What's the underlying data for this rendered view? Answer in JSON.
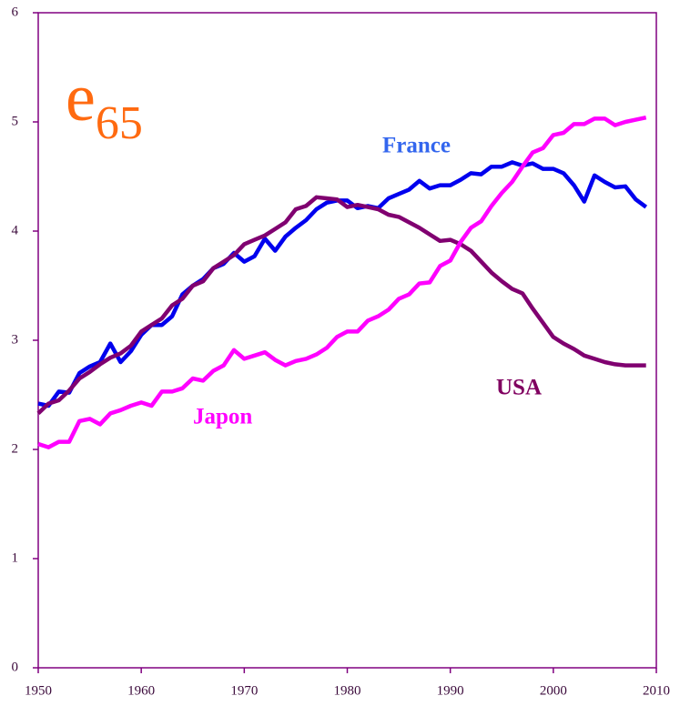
{
  "chart_data": {
    "type": "line",
    "title": "e",
    "title_subscript": "65",
    "title_color": "#ff6a10",
    "axis_color": "#800080",
    "x": [
      1950,
      1951,
      1952,
      1953,
      1954,
      1955,
      1956,
      1957,
      1958,
      1959,
      1960,
      1961,
      1962,
      1963,
      1964,
      1965,
      1966,
      1967,
      1968,
      1969,
      1970,
      1971,
      1972,
      1973,
      1974,
      1975,
      1976,
      1977,
      1978,
      1979,
      1980,
      1981,
      1982,
      1983,
      1984,
      1985,
      1986,
      1987,
      1988,
      1989,
      1990,
      1991,
      1992,
      1993,
      1994,
      1995,
      1996,
      1997,
      1998,
      1999,
      2000,
      2001,
      2002,
      2003,
      2004,
      2005,
      2006,
      2007,
      2008,
      2009
    ],
    "series": [
      {
        "name": "France",
        "color": "#0000ee",
        "label_color": "#3366ee",
        "values": [
          2.42,
          2.4,
          2.53,
          2.52,
          2.7,
          2.76,
          2.8,
          2.97,
          2.8,
          2.9,
          3.05,
          3.14,
          3.14,
          3.22,
          3.42,
          3.5,
          3.56,
          3.66,
          3.7,
          3.8,
          3.72,
          3.77,
          3.93,
          3.82,
          3.95,
          4.03,
          4.1,
          4.2,
          4.26,
          4.28,
          4.28,
          4.21,
          4.23,
          4.21,
          4.3,
          4.34,
          4.38,
          4.46,
          4.39,
          4.42,
          4.42,
          4.47,
          4.53,
          4.52,
          4.59,
          4.59,
          4.63,
          4.6,
          4.62,
          4.57,
          4.57,
          4.53,
          4.42,
          4.27,
          4.51,
          4.45,
          4.4,
          4.41,
          4.29,
          4.22
        ]
      },
      {
        "name": "USA",
        "color": "#800070",
        "label_color": "#800060",
        "values": [
          2.33,
          2.42,
          2.45,
          2.54,
          2.65,
          2.71,
          2.78,
          2.84,
          2.88,
          2.95,
          3.08,
          3.14,
          3.2,
          3.32,
          3.38,
          3.5,
          3.54,
          3.66,
          3.72,
          3.78,
          3.88,
          3.92,
          3.96,
          4.02,
          4.08,
          4.2,
          4.23,
          4.31,
          4.3,
          4.29,
          4.22,
          4.24,
          4.22,
          4.2,
          4.15,
          4.13,
          4.08,
          4.03,
          3.97,
          3.91,
          3.92,
          3.88,
          3.82,
          3.72,
          3.62,
          3.54,
          3.47,
          3.43,
          3.29,
          3.16,
          3.03,
          2.97,
          2.92,
          2.86,
          2.83,
          2.8,
          2.78,
          2.77,
          2.77,
          2.77
        ]
      },
      {
        "name": "Japon",
        "color": "#ff00ff",
        "label_color": "#ff00ff",
        "values": [
          2.05,
          2.02,
          2.07,
          2.07,
          2.26,
          2.28,
          2.23,
          2.33,
          2.36,
          2.4,
          2.43,
          2.4,
          2.53,
          2.53,
          2.56,
          2.65,
          2.63,
          2.72,
          2.77,
          2.91,
          2.83,
          2.86,
          2.89,
          2.82,
          2.77,
          2.81,
          2.83,
          2.87,
          2.93,
          3.03,
          3.08,
          3.08,
          3.18,
          3.22,
          3.28,
          3.38,
          3.42,
          3.52,
          3.53,
          3.68,
          3.73,
          3.9,
          4.03,
          4.09,
          4.23,
          4.35,
          4.45,
          4.59,
          4.72,
          4.76,
          4.88,
          4.9,
          4.98,
          4.98,
          5.03,
          5.03,
          4.97,
          5.0,
          5.02,
          5.04
        ]
      }
    ],
    "xlim": [
      1950,
      2010
    ],
    "xticks": [
      1950,
      1960,
      1970,
      1980,
      1990,
      2000,
      2010
    ],
    "ylim": [
      0,
      6
    ],
    "yticks": [
      0,
      1,
      2,
      3,
      4,
      5,
      6
    ],
    "grid": false
  }
}
